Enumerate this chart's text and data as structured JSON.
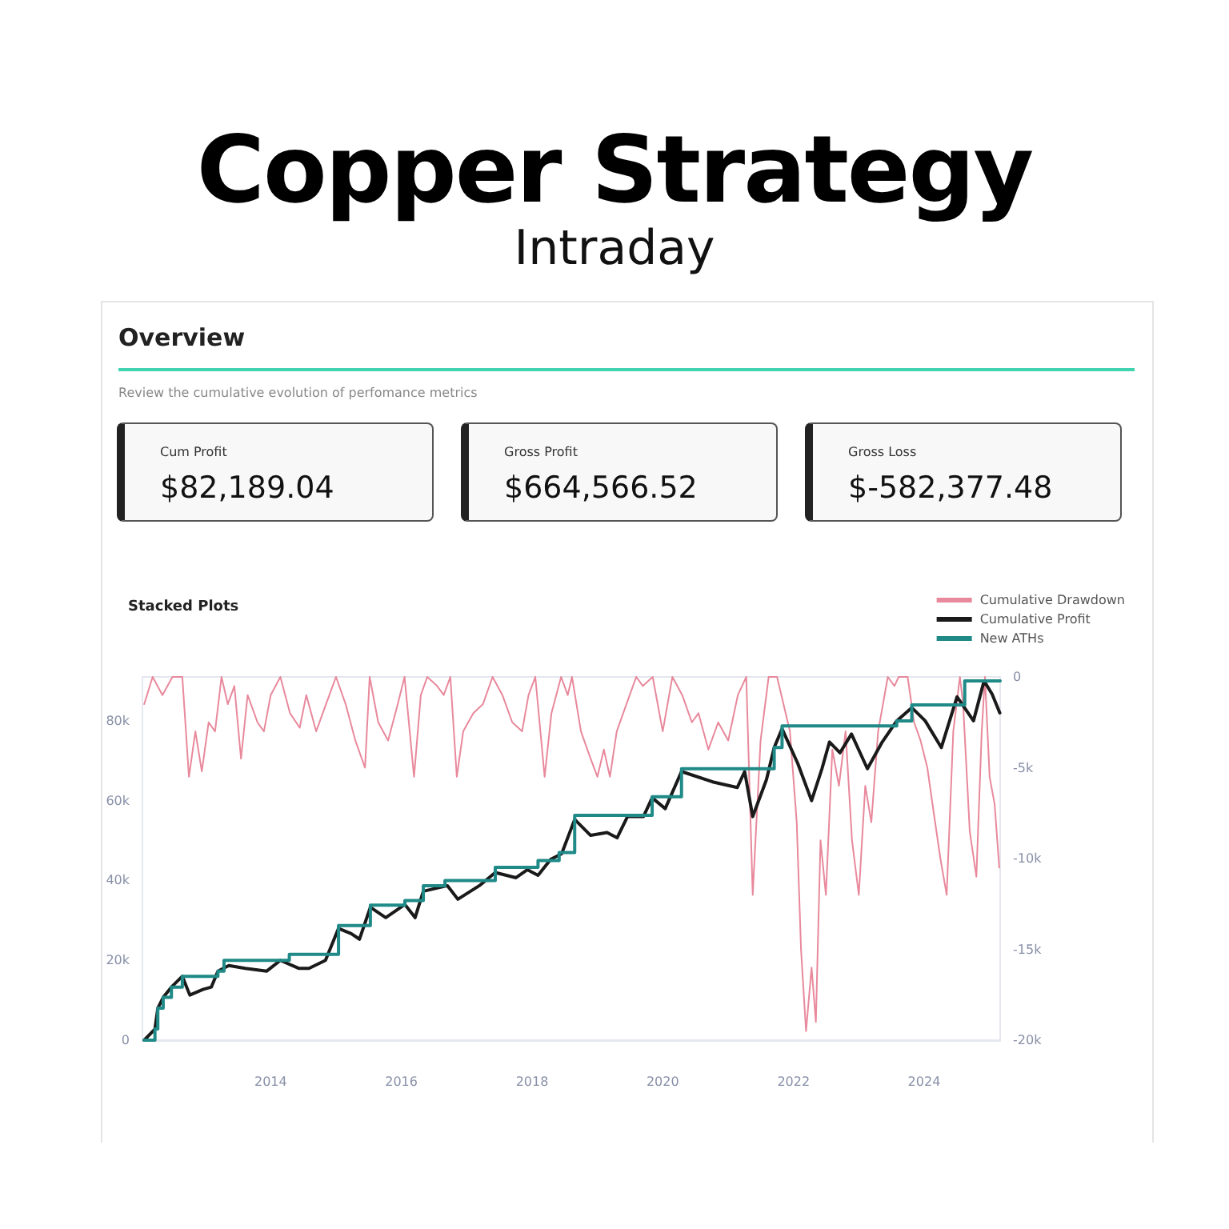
{
  "chart_data": [
    {
      "type": "other",
      "title": "Copper Strategy",
      "subtitle": "Intraday",
      "annotations": [
        "Overview",
        "Review the cumulative evolution of perfomance metrics",
        "Cum Profit",
        "$82,189.04",
        "Gross Profit",
        "$664,566.52",
        "Gross Loss",
        "$-582,377.48"
      ]
    },
    {
      "type": "line",
      "title": "Stacked Plots",
      "legend": "top right",
      "grid": false,
      "marker": "none",
      "xlim": [
        "2012-01-15",
        "2025-03-01"
      ],
      "xticks": [
        "2014",
        "2016",
        "2018",
        "2020",
        "2022",
        "2024"
      ],
      "ylim": [
        0,
        91000
      ],
      "yticks": [
        {
          "value": 0,
          "label": "0"
        },
        {
          "value": 20000,
          "label": "20k"
        },
        {
          "value": 40000,
          "label": "40k"
        },
        {
          "value": 60000,
          "label": "60k"
        },
        {
          "value": 80000,
          "label": "80k"
        }
      ],
      "y2lim": [
        -20000,
        0
      ],
      "y2ticks": [
        {
          "value": -20000,
          "label": "-20k"
        },
        {
          "value": -15000,
          "label": "-15k"
        },
        {
          "value": -10000,
          "label": "-10k"
        },
        {
          "value": -5000,
          "label": "-5k"
        },
        {
          "value": 0,
          "label": "0"
        }
      ],
      "series": [
        {
          "name": "Cumulative Drawdown",
          "color": "#e8899c",
          "type": "line",
          "axis": "y2",
          "x": [
            "2012-01-25",
            "2012-03-12",
            "2012-05-06",
            "2012-07-01",
            "2012-08-25",
            "2012-10-01",
            "2012-11-06",
            "2012-12-12",
            "2013-01-19",
            "2013-02-24",
            "2013-04-01",
            "2013-05-06",
            "2013-06-12",
            "2013-07-19",
            "2013-08-25",
            "2013-10-19",
            "2013-11-24",
            "2014-01-01",
            "2014-02-24",
            "2014-04-19",
            "2014-06-12",
            "2014-07-19",
            "2014-09-12",
            "2014-11-06",
            "2015-01-01",
            "2015-02-24",
            "2015-04-19",
            "2015-06-12",
            "2015-07-08",
            "2015-08-25",
            "2015-10-19",
            "2015-12-12",
            "2016-01-19",
            "2016-03-12",
            "2016-04-19",
            "2016-05-25",
            "2016-07-19",
            "2016-08-25",
            "2016-10-01",
            "2016-11-06",
            "2016-12-12",
            "2017-02-06",
            "2017-04-01",
            "2017-05-25",
            "2017-07-19",
            "2017-09-12",
            "2017-11-06",
            "2017-12-12",
            "2018-01-19",
            "2018-03-12",
            "2018-04-19",
            "2018-06-12",
            "2018-07-19",
            "2018-08-12",
            "2018-10-01",
            "2018-11-24",
            "2019-01-01",
            "2019-02-06",
            "2019-03-12",
            "2019-04-19",
            "2019-06-12",
            "2019-08-06",
            "2019-09-12",
            "2019-11-06",
            "2020-01-01",
            "2020-02-24",
            "2020-04-19",
            "2020-06-12",
            "2020-07-19",
            "2020-09-12",
            "2020-11-06",
            "2021-01-01",
            "2021-02-24",
            "2021-04-12",
            "2021-05-18",
            "2021-07-01",
            "2021-08-15",
            "2021-10-01",
            "2021-12-12",
            "2022-01-19",
            "2022-02-12",
            "2022-03-12",
            "2022-04-12",
            "2022-05-06",
            "2022-06-01",
            "2022-07-01",
            "2022-08-06",
            "2022-09-12",
            "2022-10-19",
            "2022-11-24",
            "2023-01-01",
            "2023-02-06",
            "2023-03-12",
            "2023-04-19",
            "2023-06-12",
            "2023-07-19",
            "2023-08-12",
            "2023-10-01",
            "2023-11-06",
            "2023-12-12",
            "2024-01-19",
            "2024-02-24",
            "2024-04-01",
            "2024-05-06",
            "2024-06-12",
            "2024-07-19",
            "2024-08-06",
            "2024-09-12",
            "2024-10-19",
            "2024-11-18",
            "2024-12-06",
            "2025-01-01",
            "2025-01-29",
            "2025-02-24"
          ],
          "values": [
            -1500,
            0,
            -1000,
            0,
            0,
            -5500,
            -3000,
            -5200,
            -2500,
            -3000,
            0,
            -1500,
            -500,
            -4500,
            -1000,
            -2500,
            -3000,
            -1000,
            0,
            -2000,
            -2800,
            -1000,
            -3000,
            -1500,
            0,
            -1500,
            -3500,
            -5000,
            0,
            -2500,
            -3500,
            -1500,
            0,
            -5500,
            -1000,
            0,
            -500,
            -1000,
            0,
            -5500,
            -3000,
            -2000,
            -1500,
            0,
            -1000,
            -2500,
            -3000,
            -1000,
            0,
            -5500,
            -2000,
            0,
            -1000,
            0,
            -3000,
            -4500,
            -5500,
            -4000,
            -5500,
            -3000,
            -1500,
            0,
            -500,
            0,
            -3000,
            0,
            -1000,
            -2500,
            -2000,
            -4000,
            -2500,
            -3500,
            -1000,
            0,
            -12000,
            -3500,
            0,
            0,
            -3000,
            -8000,
            -15000,
            -19500,
            -16000,
            -19000,
            -9000,
            -12000,
            -4000,
            -6000,
            -3000,
            -9000,
            -12000,
            -6000,
            -8000,
            -3000,
            0,
            -500,
            0,
            0,
            -2500,
            -3500,
            -5000,
            -7500,
            -10000,
            -12000,
            -3000,
            0,
            -1500,
            -8500,
            -11000,
            -3000,
            0,
            -5500,
            -7000,
            -10500
          ]
        },
        {
          "name": "Cumulative Profit",
          "color": "#1a1a1a",
          "type": "line",
          "x": [
            "2012-01-25",
            "2012-03-25",
            "2012-04-10",
            "2012-05-10",
            "2012-06-25",
            "2012-08-25",
            "2012-10-06",
            "2012-12-18",
            "2013-02-03",
            "2013-03-12",
            "2013-05-12",
            "2013-08-12",
            "2013-12-10",
            "2014-02-24",
            "2014-06-06",
            "2014-08-03",
            "2014-11-03",
            "2015-01-15",
            "2015-03-27",
            "2015-05-12",
            "2015-07-12",
            "2015-10-06",
            "2016-01-21",
            "2016-03-18",
            "2016-05-03",
            "2016-09-15",
            "2016-11-12",
            "2017-03-12",
            "2017-06-09",
            "2017-10-03",
            "2017-12-06",
            "2018-02-03",
            "2018-04-15",
            "2018-06-15",
            "2018-08-27",
            "2018-11-24",
            "2019-02-24",
            "2019-04-21",
            "2019-06-18",
            "2019-09-15",
            "2019-11-03",
            "2020-01-15",
            "2020-04-15",
            "2020-10-06",
            "2021-02-21",
            "2021-04-03",
            "2021-05-18",
            "2021-08-03",
            "2021-09-15",
            "2021-10-29",
            "2022-01-25",
            "2022-04-12",
            "2022-06-09",
            "2022-07-21",
            "2022-09-18",
            "2022-11-21",
            "2023-02-18",
            "2023-05-12",
            "2023-08-01",
            "2023-10-24",
            "2024-01-07",
            "2024-04-06",
            "2024-07-03",
            "2024-10-03",
            "2024-12-01",
            "2025-01-15",
            "2025-02-27"
          ],
          "values": [
            0,
            2800,
            8000,
            10700,
            13300,
            16000,
            11300,
            12700,
            13300,
            17300,
            18700,
            18000,
            17300,
            20000,
            18000,
            18000,
            20000,
            28000,
            26700,
            25300,
            33300,
            30700,
            34000,
            30700,
            37300,
            38700,
            35300,
            38700,
            42000,
            40700,
            42700,
            41300,
            45300,
            46700,
            55300,
            51300,
            52000,
            50700,
            56000,
            56000,
            60700,
            58000,
            67300,
            64700,
            63300,
            67300,
            56000,
            65300,
            73300,
            78000,
            69300,
            60000,
            68000,
            74700,
            72000,
            76700,
            68000,
            74700,
            80000,
            83300,
            80000,
            73300,
            86000,
            80000,
            90000,
            86700,
            82000
          ]
        },
        {
          "name": "New ATHs",
          "color": "#1f8a87",
          "type": "step",
          "x": [
            "2012-01-25",
            "2012-03-25",
            "2012-04-10",
            "2012-05-10",
            "2012-06-25",
            "2012-08-25",
            "2013-03-12",
            "2013-04-15",
            "2014-04-15",
            "2015-01-15",
            "2015-07-12",
            "2016-01-21",
            "2016-05-03",
            "2016-09-01",
            "2017-06-09",
            "2018-02-03",
            "2018-06-01",
            "2018-08-27",
            "2019-11-03",
            "2020-04-15",
            "2021-09-15",
            "2021-10-29",
            "2023-08-01",
            "2023-10-24",
            "2024-08-15",
            "2025-03-01"
          ],
          "values": [
            0,
            2800,
            8000,
            10700,
            13300,
            16000,
            17300,
            20000,
            21500,
            28700,
            33800,
            35000,
            38700,
            40000,
            43300,
            45000,
            47000,
            56300,
            61000,
            68000,
            73300,
            78700,
            80000,
            84000,
            90000,
            90000
          ]
        }
      ]
    }
  ]
}
